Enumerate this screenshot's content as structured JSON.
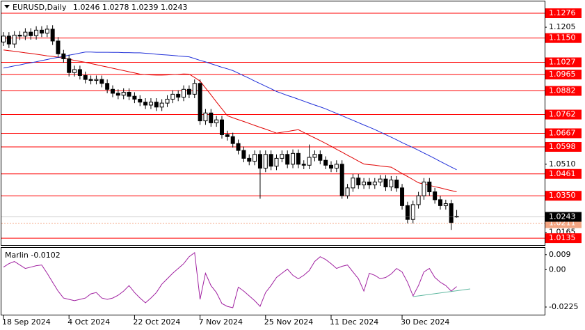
{
  "chart_data": [
    {
      "type": "candlestick",
      "title": "EURUSD,Daily",
      "categories": [
        "18 Sep 2024",
        null,
        null,
        null,
        null,
        null,
        null,
        null,
        null,
        null,
        null,
        null,
        "4 Oct 2024",
        null,
        null,
        null,
        null,
        null,
        null,
        null,
        null,
        null,
        null,
        null,
        "22 Oct 2024",
        null,
        null,
        null,
        null,
        null,
        null,
        null,
        null,
        null,
        null,
        null,
        "7 Nov 2024",
        null,
        null,
        null,
        null,
        null,
        null,
        null,
        null,
        null,
        null,
        null,
        "25 Nov 2024",
        null,
        null,
        null,
        null,
        null,
        null,
        null,
        null,
        null,
        null,
        null,
        "11 Dec 2024",
        null,
        null,
        null,
        null,
        null,
        null,
        null,
        null,
        null,
        null,
        null,
        null,
        "30 Dec 2024",
        null,
        null,
        null,
        null,
        null,
        null,
        null,
        null,
        null,
        null
      ],
      "open": [
        1.113,
        1.116,
        1.112,
        1.1165,
        1.116,
        1.118,
        1.1162,
        1.119,
        1.1175,
        1.1195,
        1.1135,
        1.107,
        1.1045,
        1.0975,
        1.099,
        1.096,
        1.094,
        1.0935,
        1.094,
        1.092,
        1.089,
        1.087,
        1.086,
        1.0875,
        1.0855,
        1.084,
        1.0825,
        1.081,
        1.0825,
        1.08,
        1.082,
        1.084,
        1.0865,
        1.085,
        1.089,
        1.0865,
        1.092,
        1.073,
        1.077,
        1.072,
        1.0735,
        1.066,
        1.065,
        1.0615,
        1.058,
        1.054,
        1.0525,
        1.056,
        1.049,
        1.056,
        1.05,
        1.054,
        1.056,
        1.051,
        1.0565,
        1.051,
        1.0505,
        1.0545,
        1.056,
        1.053,
        1.0505,
        1.049,
        1.051,
        1.035,
        1.039,
        1.044,
        1.0405,
        1.042,
        1.0405,
        1.042,
        1.0435,
        1.0395,
        1.043,
        1.039,
        1.03,
        1.023,
        1.0305,
        1.035,
        1.042,
        1.037,
        1.033,
        1.03,
        1.031,
        1.0246
      ],
      "high": [
        1.118,
        1.118,
        1.1185,
        1.1185,
        1.12,
        1.12,
        1.121,
        1.121,
        1.1215,
        1.1215,
        1.1155,
        1.109,
        1.1065,
        1.101,
        1.101,
        1.098,
        1.096,
        1.096,
        1.096,
        1.094,
        1.091,
        1.089,
        1.0895,
        1.0895,
        1.0875,
        1.086,
        1.0845,
        1.0845,
        1.0845,
        1.084,
        1.086,
        1.0885,
        1.0885,
        1.091,
        1.091,
        1.094,
        1.094,
        1.079,
        1.079,
        1.0755,
        1.0755,
        1.068,
        1.067,
        1.0635,
        1.06,
        1.056,
        1.058,
        1.058,
        1.058,
        1.058,
        1.056,
        1.058,
        1.058,
        1.0585,
        1.0585,
        1.053,
        1.061,
        1.058,
        1.058,
        1.055,
        1.0525,
        1.053,
        1.053,
        1.041,
        1.046,
        1.046,
        1.044,
        1.044,
        1.044,
        1.0455,
        1.0455,
        1.045,
        1.045,
        1.041,
        1.032,
        1.0325,
        1.037,
        1.044,
        1.044,
        1.039,
        1.035,
        1.033,
        1.033,
        1.0278
      ],
      "low": [
        1.111,
        1.11,
        1.11,
        1.114,
        1.114,
        1.1142,
        1.1142,
        1.1155,
        1.1155,
        1.1115,
        1.105,
        1.1025,
        1.0955,
        1.0955,
        1.094,
        1.092,
        1.0915,
        1.0915,
        1.09,
        1.087,
        1.085,
        1.084,
        1.084,
        1.0835,
        1.082,
        1.0805,
        1.079,
        1.079,
        1.078,
        1.078,
        1.08,
        1.082,
        1.083,
        1.083,
        1.0845,
        1.0845,
        1.071,
        1.071,
        1.07,
        1.07,
        1.064,
        1.063,
        1.0595,
        1.056,
        1.052,
        1.0505,
        1.0505,
        1.0335,
        1.047,
        1.048,
        1.048,
        1.052,
        1.049,
        1.049,
        1.049,
        1.0485,
        1.0485,
        1.0525,
        1.051,
        1.0485,
        1.047,
        1.047,
        1.0335,
        1.0335,
        1.037,
        1.0385,
        1.0385,
        1.0385,
        1.0385,
        1.04,
        1.0375,
        1.0375,
        1.037,
        1.028,
        1.021,
        1.021,
        1.0285,
        1.033,
        1.035,
        1.031,
        1.028,
        1.028,
        1.0177,
        1.0239
      ],
      "close": [
        1.116,
        1.112,
        1.1165,
        1.116,
        1.118,
        1.1162,
        1.119,
        1.1175,
        1.1195,
        1.1135,
        1.107,
        1.1045,
        1.0975,
        1.099,
        1.096,
        1.094,
        1.0935,
        1.094,
        1.092,
        1.089,
        1.087,
        1.086,
        1.0875,
        1.0855,
        1.084,
        1.0825,
        1.081,
        1.0825,
        1.08,
        1.082,
        1.084,
        1.0865,
        1.085,
        1.089,
        1.0865,
        1.092,
        1.073,
        1.077,
        1.072,
        1.0735,
        1.066,
        1.065,
        1.0615,
        1.058,
        1.054,
        1.0525,
        1.056,
        1.049,
        1.056,
        1.05,
        1.054,
        1.056,
        1.051,
        1.0565,
        1.051,
        1.0505,
        1.0545,
        1.056,
        1.053,
        1.0505,
        1.049,
        1.051,
        1.035,
        1.039,
        1.044,
        1.0405,
        1.042,
        1.0405,
        1.042,
        1.0435,
        1.0395,
        1.043,
        1.039,
        1.03,
        1.023,
        1.0305,
        1.035,
        1.042,
        1.037,
        1.033,
        1.03,
        1.031,
        1.0215,
        1.0243
      ],
      "lines": [
        {
          "color": "#e00000",
          "values": [
            1.109,
            1.1086,
            1.1083,
            1.1079,
            1.1075,
            1.1072,
            1.1068,
            1.1064,
            1.106,
            1.1057,
            1.1053,
            1.1048,
            1.1043,
            1.1037,
            1.1032,
            1.1027,
            1.1021,
            1.1015,
            1.1009,
            1.1003,
            1.0997,
            1.0991,
            1.0985,
            1.0979,
            1.0973,
            1.0967,
            1.0965,
            1.0963,
            1.0962,
            1.0962,
            1.0963,
            1.0965,
            1.0966,
            1.0968,
            1.0967,
            1.095,
            1.0932,
            1.0897,
            1.0862,
            1.0826,
            1.0791,
            1.0756,
            1.0746,
            1.0736,
            1.0727,
            1.0717,
            1.0707,
            1.0697,
            1.0688,
            1.0678,
            1.0668,
            1.0672,
            1.0676,
            1.0681,
            1.0685,
            1.0671,
            1.0657,
            1.0644,
            1.063,
            1.0616,
            1.0601,
            1.0586,
            1.0571,
            1.0556,
            1.0541,
            1.0526,
            1.0511,
            1.0508,
            1.0505,
            1.0501,
            1.0498,
            1.0495,
            1.0479,
            1.0463,
            1.0448,
            1.0432,
            1.0416,
            1.0409,
            1.0403,
            1.0396,
            1.039,
            1.0383,
            1.0376,
            1.037
          ]
        },
        {
          "color": "#1f2ed8",
          "values": [
            1.0998,
            1.1003,
            1.1009,
            1.1014,
            1.102,
            1.1025,
            1.103,
            1.1036,
            1.1041,
            1.1047,
            1.1052,
            1.1057,
            1.1063,
            1.1068,
            1.1074,
            1.1079,
            1.1079,
            1.1078,
            1.1078,
            1.1078,
            1.1077,
            1.1077,
            1.1076,
            1.1076,
            1.1075,
            1.1075,
            1.1073,
            1.1071,
            1.1068,
            1.1066,
            1.1064,
            1.1062,
            1.1059,
            1.1057,
            1.1055,
            1.1046,
            1.1037,
            1.1029,
            1.102,
            1.1011,
            1.1002,
            1.0994,
            1.0985,
            1.0972,
            1.0959,
            1.0946,
            1.0932,
            1.0919,
            1.0906,
            1.0893,
            1.0879,
            1.0869,
            1.0859,
            1.085,
            1.084,
            1.083,
            1.082,
            1.081,
            1.0801,
            1.0791,
            1.0779,
            1.0768,
            1.0756,
            1.0744,
            1.0733,
            1.0721,
            1.0709,
            1.0698,
            1.0686,
            1.0673,
            1.066,
            1.0647,
            1.0634,
            1.062,
            1.0607,
            1.0594,
            1.0581,
            1.0567,
            1.0553,
            1.0539,
            1.0524,
            1.051,
            1.0496,
            1.0482
          ]
        }
      ],
      "levels": [
        1.1276,
        {
          "value": 1.115,
          "label": "1.1150"
        },
        1.1027,
        1.0965,
        1.0882,
        1.0762,
        1.0667,
        1.0598,
        1.0461,
        {
          "value": 1.035,
          "label": "1.0350"
        },
        1.0135
      ],
      "level_color": "#ff0000",
      "marker_line": 1.0211,
      "marker_color": "#f4a582",
      "ylim": [
        1.01,
        1.1336
      ],
      "yticks": [
        1.1205,
        {
          "value": 1.051,
          "label": "1.0510"
        },
        1.0165
      ]
    },
    {
      "type": "line",
      "title": "Marlin",
      "color": "#a020a0",
      "values": [
        0.0015,
        0.0036,
        0.0049,
        0.0028,
        0.0007,
        0.0015,
        0.0024,
        0.0028,
        -0.0022,
        -0.0076,
        -0.0129,
        -0.0171,
        -0.0179,
        -0.0187,
        -0.0179,
        -0.0171,
        -0.0146,
        -0.0138,
        -0.0171,
        -0.0179,
        -0.0171,
        -0.0154,
        -0.0129,
        -0.0096,
        -0.0138,
        -0.0171,
        -0.02,
        -0.0171,
        -0.0138,
        -0.0088,
        -0.0055,
        -0.0022,
        0.0007,
        0.0036,
        0.0078,
        0.0102,
        -0.0179,
        -0.0022,
        -0.0096,
        -0.0138,
        -0.0204,
        -0.0221,
        -0.0229,
        -0.0105,
        -0.0129,
        -0.0158,
        -0.0187,
        -0.0221,
        -0.0138,
        -0.0096,
        -0.0047,
        -0.0022,
        0.0003,
        -0.0034,
        -0.0055,
        -0.0034,
        -0.0005,
        0.0049,
        0.0078,
        0.0061,
        0.0036,
        0.0007,
        0.002,
        0.0028,
        -0.0014,
        -0.0055,
        -0.0129,
        -0.0022,
        -0.0034,
        -0.0055,
        -0.0047,
        -0.0026,
        0.0007,
        -0.0014,
        -0.0076,
        -0.0158,
        -0.0096,
        -0.0014,
        0.0007,
        -0.0047,
        -0.0076,
        -0.0096,
        -0.0129,
        -0.0102
      ],
      "ylim": [
        -0.0271,
        0.0131
      ],
      "yticks": [
        0.009,
        {
          "value": 0,
          "label": "0.00"
        },
        -0.0225
      ]
    }
  ]
}
